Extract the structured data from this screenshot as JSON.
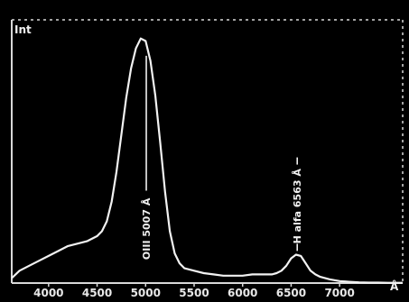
{
  "chart_data": {
    "type": "line",
    "title": "",
    "ylabel": "Int",
    "xunit": "Å",
    "xlim": [
      3620,
      7650
    ],
    "ylim": [
      0,
      1.0
    ],
    "grid": false,
    "colors": {
      "background": "#000000",
      "line": "#f2f2f2",
      "frame": "#d8d8d8"
    },
    "xticks": [
      {
        "value": 4000,
        "label": "4000"
      },
      {
        "value": 4500,
        "label": "4500"
      },
      {
        "value": 5000,
        "label": "5000"
      },
      {
        "value": 5500,
        "label": "5500"
      },
      {
        "value": 6000,
        "label": "6000"
      },
      {
        "value": 6500,
        "label": "6500"
      },
      {
        "value": 7000,
        "label": "7000"
      }
    ],
    "series": [
      {
        "x": [
          3620,
          3700,
          3800,
          3900,
          4000,
          4100,
          4200,
          4300,
          4400,
          4500,
          4550,
          4600,
          4650,
          4700,
          4750,
          4800,
          4850,
          4900,
          4950,
          5000,
          5050,
          5100,
          5150,
          5200,
          5250,
          5300,
          5350,
          5400,
          5500,
          5600,
          5700,
          5800,
          5900,
          6000,
          6100,
          6200,
          6300,
          6350,
          6400,
          6450,
          6500,
          6550,
          6600,
          6650,
          6700,
          6750,
          6800,
          6900,
          7000,
          7100,
          7200,
          7300,
          7400,
          7500,
          7650
        ],
        "y": [
          0.02,
          0.05,
          0.07,
          0.09,
          0.11,
          0.13,
          0.15,
          0.16,
          0.17,
          0.19,
          0.21,
          0.25,
          0.33,
          0.45,
          0.6,
          0.75,
          0.87,
          0.95,
          0.99,
          0.98,
          0.9,
          0.76,
          0.57,
          0.37,
          0.21,
          0.12,
          0.08,
          0.06,
          0.05,
          0.04,
          0.035,
          0.03,
          0.03,
          0.03,
          0.035,
          0.035,
          0.035,
          0.04,
          0.05,
          0.07,
          0.1,
          0.115,
          0.11,
          0.08,
          0.05,
          0.035,
          0.025,
          0.015,
          0.008,
          0.005,
          0.003,
          0.002,
          0.002,
          0.001,
          0.001
        ]
      }
    ],
    "annotations": [
      {
        "text": "OIII 5007 Å",
        "x": 5007,
        "y_from": 0.08,
        "y_to": 0.92
      },
      {
        "text": "H alfa 6563 Å",
        "x": 6563,
        "y_from": 0.13,
        "y_to": 0.35
      }
    ]
  }
}
